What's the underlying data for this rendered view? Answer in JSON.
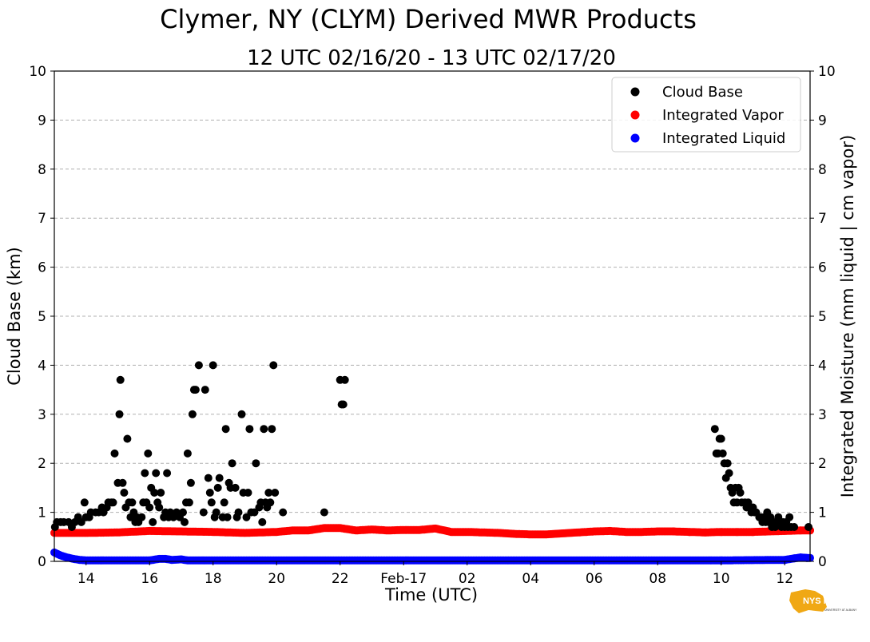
{
  "chart_data": {
    "type": "scatter",
    "title": "Clymer, NY (CLYM) Derived MWR Products",
    "subtitle": "12 UTC 02/16/20 - 13 UTC 02/17/20",
    "xlabel": "Time (UTC)",
    "ylabel": "Cloud Base (km)",
    "ylabel_right": "Integrated Moisture (mm liquid | cm vapor)",
    "xlim": [
      13.0,
      36.8
    ],
    "ylim": [
      0,
      10
    ],
    "ylim_right": [
      0,
      10
    ],
    "grid": "horizontal dashed",
    "legend_position": "top-right",
    "x_ticks": [
      {
        "x": 14,
        "label": "14"
      },
      {
        "x": 16,
        "label": "16"
      },
      {
        "x": 18,
        "label": "18"
      },
      {
        "x": 20,
        "label": "20"
      },
      {
        "x": 22,
        "label": "22"
      },
      {
        "x": 24,
        "label": "Feb-17"
      },
      {
        "x": 26,
        "label": "02"
      },
      {
        "x": 28,
        "label": "04"
      },
      {
        "x": 30,
        "label": "06"
      },
      {
        "x": 32,
        "label": "08"
      },
      {
        "x": 34,
        "label": "10"
      },
      {
        "x": 36,
        "label": "12"
      }
    ],
    "y_ticks": [
      "0",
      "1",
      "2",
      "3",
      "4",
      "5",
      "6",
      "7",
      "8",
      "9",
      "10"
    ],
    "series": [
      {
        "name": "Cloud Base",
        "color": "#000000",
        "points": [
          [
            13.02,
            0.7
          ],
          [
            13.08,
            0.8
          ],
          [
            13.2,
            0.8
          ],
          [
            13.3,
            0.8
          ],
          [
            13.45,
            0.8
          ],
          [
            13.55,
            0.7
          ],
          [
            13.65,
            0.8
          ],
          [
            13.75,
            0.9
          ],
          [
            13.85,
            0.8
          ],
          [
            13.95,
            1.2
          ],
          [
            14.0,
            0.9
          ],
          [
            14.1,
            0.9
          ],
          [
            14.15,
            1.0
          ],
          [
            14.3,
            1.0
          ],
          [
            14.4,
            1.0
          ],
          [
            14.5,
            1.1
          ],
          [
            14.55,
            1.0
          ],
          [
            14.65,
            1.1
          ],
          [
            14.7,
            1.2
          ],
          [
            14.8,
            1.2
          ],
          [
            14.85,
            1.2
          ],
          [
            14.9,
            2.2
          ],
          [
            15.0,
            1.6
          ],
          [
            15.05,
            3.0
          ],
          [
            15.08,
            3.7
          ],
          [
            15.15,
            1.6
          ],
          [
            15.2,
            1.4
          ],
          [
            15.25,
            1.1
          ],
          [
            15.3,
            2.5
          ],
          [
            15.35,
            1.2
          ],
          [
            15.4,
            0.9
          ],
          [
            15.45,
            1.2
          ],
          [
            15.5,
            1.0
          ],
          [
            15.55,
            0.8
          ],
          [
            15.6,
            0.9
          ],
          [
            15.65,
            0.8
          ],
          [
            15.75,
            0.9
          ],
          [
            15.8,
            1.2
          ],
          [
            15.85,
            1.8
          ],
          [
            15.9,
            1.2
          ],
          [
            15.95,
            2.2
          ],
          [
            16.0,
            1.1
          ],
          [
            16.05,
            1.5
          ],
          [
            16.1,
            0.8
          ],
          [
            16.15,
            1.4
          ],
          [
            16.2,
            1.8
          ],
          [
            16.25,
            1.2
          ],
          [
            16.3,
            1.1
          ],
          [
            16.35,
            1.4
          ],
          [
            16.45,
            0.9
          ],
          [
            16.5,
            1.0
          ],
          [
            16.55,
            1.8
          ],
          [
            16.6,
            0.9
          ],
          [
            16.65,
            1.0
          ],
          [
            16.75,
            0.9
          ],
          [
            16.85,
            1.0
          ],
          [
            16.95,
            0.9
          ],
          [
            17.05,
            1.0
          ],
          [
            17.1,
            0.8
          ],
          [
            17.15,
            1.2
          ],
          [
            17.2,
            2.2
          ],
          [
            17.25,
            1.2
          ],
          [
            17.3,
            1.6
          ],
          [
            17.35,
            3.0
          ],
          [
            17.4,
            3.5
          ],
          [
            17.45,
            3.5
          ],
          [
            17.55,
            4.0
          ],
          [
            17.7,
            1.0
          ],
          [
            17.75,
            3.5
          ],
          [
            17.85,
            1.7
          ],
          [
            17.9,
            1.4
          ],
          [
            17.95,
            1.2
          ],
          [
            18.0,
            4.0
          ],
          [
            18.05,
            0.9
          ],
          [
            18.1,
            1.0
          ],
          [
            18.15,
            1.5
          ],
          [
            18.2,
            1.7
          ],
          [
            18.3,
            0.9
          ],
          [
            18.35,
            1.2
          ],
          [
            18.4,
            2.7
          ],
          [
            18.45,
            0.9
          ],
          [
            18.5,
            1.6
          ],
          [
            18.55,
            1.5
          ],
          [
            18.6,
            2.0
          ],
          [
            18.7,
            1.5
          ],
          [
            18.75,
            0.9
          ],
          [
            18.8,
            1.0
          ],
          [
            18.9,
            3.0
          ],
          [
            18.95,
            1.4
          ],
          [
            19.05,
            0.9
          ],
          [
            19.1,
            1.4
          ],
          [
            19.15,
            2.7
          ],
          [
            19.2,
            1.0
          ],
          [
            19.3,
            1.0
          ],
          [
            19.35,
            2.0
          ],
          [
            19.45,
            1.1
          ],
          [
            19.5,
            1.2
          ],
          [
            19.55,
            0.8
          ],
          [
            19.6,
            2.7
          ],
          [
            19.65,
            1.2
          ],
          [
            19.7,
            1.1
          ],
          [
            19.75,
            1.4
          ],
          [
            19.8,
            1.2
          ],
          [
            19.85,
            2.7
          ],
          [
            19.9,
            4.0
          ],
          [
            19.95,
            1.4
          ],
          [
            20.2,
            1.0
          ],
          [
            21.5,
            1.0
          ],
          [
            22.0,
            3.7
          ],
          [
            22.05,
            3.2
          ],
          [
            22.1,
            3.2
          ],
          [
            22.15,
            3.7
          ],
          [
            33.8,
            2.7
          ],
          [
            33.85,
            2.2
          ],
          [
            33.9,
            2.2
          ],
          [
            33.95,
            2.5
          ],
          [
            34.0,
            2.5
          ],
          [
            34.05,
            2.2
          ],
          [
            34.1,
            2.0
          ],
          [
            34.15,
            1.7
          ],
          [
            34.2,
            2.0
          ],
          [
            34.25,
            1.8
          ],
          [
            34.3,
            1.5
          ],
          [
            34.35,
            1.4
          ],
          [
            34.4,
            1.2
          ],
          [
            34.45,
            1.5
          ],
          [
            34.5,
            1.2
          ],
          [
            34.55,
            1.5
          ],
          [
            34.6,
            1.4
          ],
          [
            34.65,
            1.2
          ],
          [
            34.75,
            1.2
          ],
          [
            34.8,
            1.1
          ],
          [
            34.85,
            1.2
          ],
          [
            34.9,
            1.1
          ],
          [
            34.95,
            1.0
          ],
          [
            35.0,
            1.1
          ],
          [
            35.05,
            1.0
          ],
          [
            35.1,
            1.0
          ],
          [
            35.2,
            0.9
          ],
          [
            35.25,
            0.9
          ],
          [
            35.3,
            0.8
          ],
          [
            35.35,
            0.9
          ],
          [
            35.4,
            0.8
          ],
          [
            35.45,
            1.0
          ],
          [
            35.5,
            0.8
          ],
          [
            35.55,
            0.9
          ],
          [
            35.6,
            0.7
          ],
          [
            35.65,
            0.8
          ],
          [
            35.7,
            0.7
          ],
          [
            35.75,
            0.8
          ],
          [
            35.8,
            0.9
          ],
          [
            35.85,
            0.8
          ],
          [
            35.9,
            0.7
          ],
          [
            35.95,
            0.8
          ],
          [
            36.0,
            0.7
          ],
          [
            36.05,
            0.8
          ],
          [
            36.1,
            0.7
          ],
          [
            36.15,
            0.9
          ],
          [
            36.2,
            0.7
          ],
          [
            36.3,
            0.7
          ],
          [
            36.75,
            0.7
          ]
        ]
      },
      {
        "name": "Integrated Vapor",
        "color": "#ff0000",
        "points": [
          [
            13.0,
            0.58
          ],
          [
            14.0,
            0.58
          ],
          [
            15.0,
            0.59
          ],
          [
            16.0,
            0.62
          ],
          [
            17.0,
            0.61
          ],
          [
            18.0,
            0.6
          ],
          [
            19.0,
            0.58
          ],
          [
            20.0,
            0.6
          ],
          [
            20.5,
            0.63
          ],
          [
            21.0,
            0.63
          ],
          [
            21.5,
            0.68
          ],
          [
            22.0,
            0.68
          ],
          [
            22.5,
            0.63
          ],
          [
            23.0,
            0.65
          ],
          [
            23.5,
            0.63
          ],
          [
            24.0,
            0.64
          ],
          [
            24.5,
            0.64
          ],
          [
            25.0,
            0.67
          ],
          [
            25.5,
            0.6
          ],
          [
            26.0,
            0.6
          ],
          [
            26.5,
            0.59
          ],
          [
            27.0,
            0.58
          ],
          [
            27.5,
            0.56
          ],
          [
            28.0,
            0.55
          ],
          [
            28.5,
            0.55
          ],
          [
            29.0,
            0.57
          ],
          [
            29.5,
            0.59
          ],
          [
            30.0,
            0.61
          ],
          [
            30.5,
            0.62
          ],
          [
            31.0,
            0.6
          ],
          [
            31.5,
            0.6
          ],
          [
            32.0,
            0.61
          ],
          [
            32.5,
            0.61
          ],
          [
            33.0,
            0.6
          ],
          [
            33.5,
            0.59
          ],
          [
            34.0,
            0.6
          ],
          [
            34.5,
            0.6
          ],
          [
            35.0,
            0.6
          ],
          [
            35.5,
            0.61
          ],
          [
            36.0,
            0.62
          ],
          [
            36.5,
            0.63
          ],
          [
            36.8,
            0.63
          ]
        ]
      },
      {
        "name": "Integrated Liquid",
        "color": "#0000ff",
        "points": [
          [
            13.0,
            0.18
          ],
          [
            13.1,
            0.15
          ],
          [
            13.2,
            0.12
          ],
          [
            13.3,
            0.1
          ],
          [
            13.4,
            0.08
          ],
          [
            13.6,
            0.05
          ],
          [
            13.8,
            0.03
          ],
          [
            14.0,
            0.02
          ],
          [
            15.0,
            0.02
          ],
          [
            16.0,
            0.02
          ],
          [
            16.3,
            0.05
          ],
          [
            16.5,
            0.05
          ],
          [
            16.7,
            0.03
          ],
          [
            17.0,
            0.04
          ],
          [
            17.2,
            0.02
          ],
          [
            18.0,
            0.02
          ],
          [
            20.0,
            0.02
          ],
          [
            22.0,
            0.02
          ],
          [
            24.0,
            0.02
          ],
          [
            26.0,
            0.02
          ],
          [
            28.0,
            0.02
          ],
          [
            30.0,
            0.02
          ],
          [
            32.0,
            0.02
          ],
          [
            34.0,
            0.02
          ],
          [
            36.0,
            0.03
          ],
          [
            36.3,
            0.06
          ],
          [
            36.5,
            0.08
          ],
          [
            36.7,
            0.07
          ],
          [
            36.8,
            0.07
          ]
        ]
      }
    ]
  },
  "logo": {
    "text": "NYS Mesonet",
    "subtext": "UNIVERSITY AT ALBANY"
  }
}
